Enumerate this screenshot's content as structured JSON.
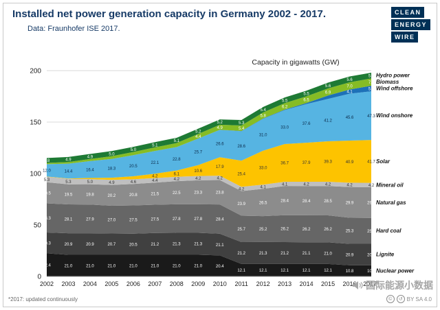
{
  "header": {
    "title": "Installed net power generation capacity in Germany 2002 - 2017.",
    "subtitle": "Data: Fraunhofer ISE 2017.",
    "logo_lines": [
      "CLEAN",
      "ENERGY",
      "WIRE"
    ]
  },
  "footer": {
    "footnote": "*2017: updated continuously",
    "watermark": "国际能源小数据",
    "license": "BY SA 4.0"
  },
  "colors": {
    "title_navy": "#163a66",
    "logo_navy": "#003056",
    "grid": "#d9d9d9",
    "axis": "#888888"
  },
  "chart_data": {
    "type": "area",
    "stacked": true,
    "title": "Capacity in gigawatts (GW)",
    "xlabel": "",
    "ylabel": "",
    "ylim": [
      0,
      200
    ],
    "yticks": [
      0,
      50,
      100,
      150,
      200
    ],
    "grid": "horizontal",
    "legend_position": "right",
    "x": [
      2002,
      2003,
      2004,
      2005,
      2006,
      2007,
      2008,
      2009,
      2010,
      2011,
      2012,
      2013,
      2014,
      2015,
      2016,
      2017
    ],
    "x_tick_labels": [
      "2002",
      "2003",
      "2004",
      "2005",
      "2006",
      "2007",
      "2008",
      "2009",
      "2010",
      "2011",
      "2012",
      "2013",
      "2014",
      "2015",
      "2016",
      "2017*"
    ],
    "series": [
      {
        "name": "Nuclear power",
        "color": "#1a1a1a",
        "label_color": "#ffffff",
        "values": [
          22.4,
          21.0,
          21.0,
          21.0,
          21.0,
          21.0,
          21.0,
          21.0,
          20.4,
          12.1,
          12.1,
          12.1,
          12.1,
          12.1,
          10.8,
          10.8
        ]
      },
      {
        "name": "Lignite",
        "color": "#404040",
        "label_color": "#ffffff",
        "values": [
          20.3,
          20.9,
          20.9,
          20.7,
          20.5,
          21.2,
          21.3,
          21.3,
          21.1,
          21.2,
          21.3,
          21.2,
          21.1,
          21.0,
          20.9,
          20.9
        ]
      },
      {
        "name": "Hard coal",
        "color": "#666666",
        "label_color": "#ffffff",
        "values": [
          28.3,
          28.1,
          27.9,
          27.0,
          27.5,
          27.5,
          27.8,
          27.8,
          28.4,
          25.7,
          25.2,
          26.2,
          26.2,
          26.2,
          25.3,
          25.1
        ]
      },
      {
        "name": "Natural gas",
        "color": "#8c8c8c",
        "label_color": "#ffffff",
        "values": [
          20.5,
          19.5,
          19.8,
          20.2,
          20.8,
          21.5,
          22.5,
          23.3,
          23.8,
          23.9,
          26.5,
          28.4,
          28.4,
          28.5,
          29.9,
          29.9
        ]
      },
      {
        "name": "Mineral oil",
        "color": "#bfbfbf",
        "label_color": "#333333",
        "values": [
          5.3,
          5.3,
          5.0,
          4.9,
          4.6,
          4.4,
          4.2,
          4.2,
          4.2,
          4.2,
          4.1,
          4.1,
          4.2,
          4.2,
          4.2,
          4.2
        ]
      },
      {
        "name": "Solar",
        "color": "#fdc300",
        "label_color": "#333333",
        "values": [
          0.3,
          0.4,
          1.1,
          2.1,
          2.9,
          4.2,
          6.1,
          10.6,
          17.9,
          25.4,
          33.0,
          36.7,
          37.9,
          39.3,
          40.9,
          41.7
        ]
      },
      {
        "name": "Wind onshore",
        "color": "#56b4e2",
        "label_color": "#0b2a4a",
        "values": [
          12.0,
          14.4,
          16.4,
          18.3,
          20.5,
          22.1,
          22.8,
          25.7,
          26.6,
          28.6,
          31.0,
          33.0,
          37.6,
          41.2,
          45.6,
          47.3
        ]
      },
      {
        "name": "Wind offshore",
        "color": "#1d71b8",
        "label_color": "#ffffff",
        "values": [
          0.0,
          0.0,
          0.0,
          0.0,
          0.0,
          0.0,
          0.0,
          0.1,
          0.1,
          0.2,
          0.3,
          0.5,
          1.0,
          3.3,
          4.1,
          5.4
        ]
      },
      {
        "name": "Biomass",
        "color": "#86bc25",
        "label_color": "#ffffff",
        "values": [
          1.2,
          1.6,
          2.0,
          2.6,
          3.1,
          3.5,
          3.9,
          4.4,
          4.9,
          5.4,
          5.8,
          6.2,
          6.5,
          6.9,
          7.0,
          7.1
        ]
      },
      {
        "name": "Hydro power",
        "color": "#1e7a34",
        "label_color": "#ffffff",
        "values": [
          4.8,
          4.9,
          4.9,
          5.0,
          5.0,
          5.1,
          5.1,
          5.2,
          5.2,
          5.3,
          5.4,
          5.5,
          5.5,
          5.6,
          5.6,
          5.6
        ]
      }
    ]
  }
}
